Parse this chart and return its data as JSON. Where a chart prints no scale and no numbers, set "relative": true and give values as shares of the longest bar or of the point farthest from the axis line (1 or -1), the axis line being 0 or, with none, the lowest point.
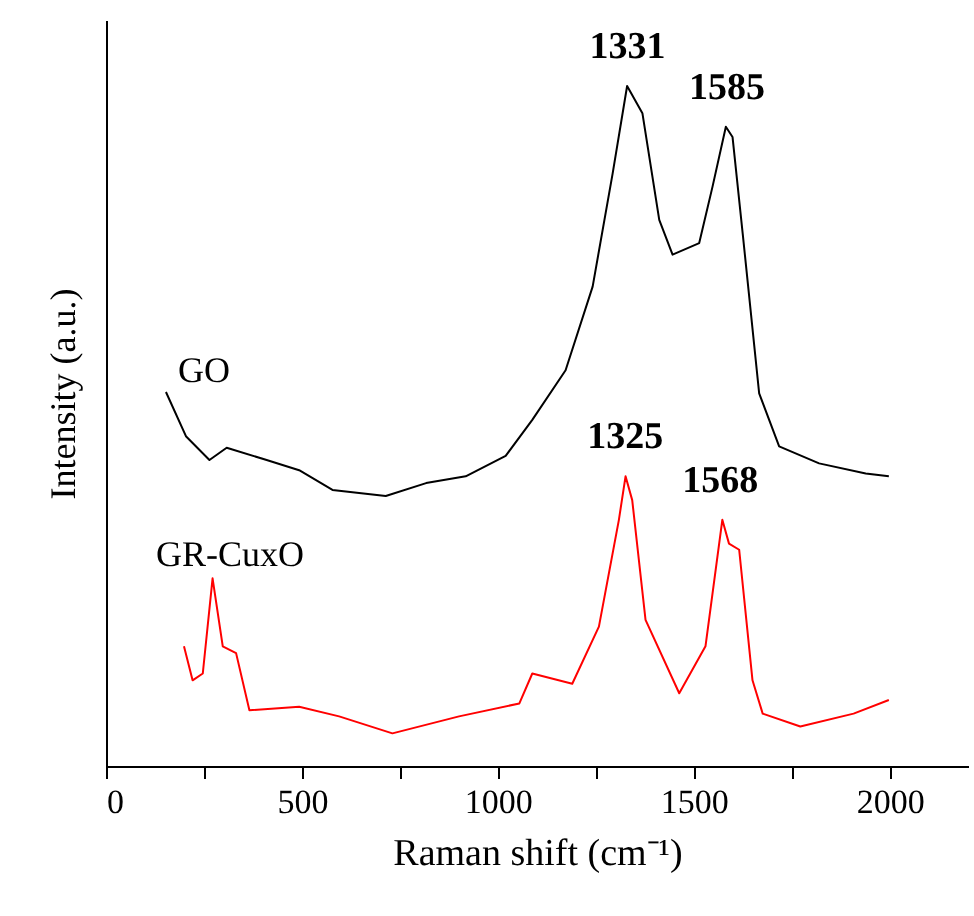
{
  "chart_data": {
    "type": "line",
    "relative": true,
    "xlabel": "Raman shift (cm⁻¹)",
    "ylabel": "Intensity (a.u.)",
    "xlim": [
      0,
      2200
    ],
    "xticks": [
      0,
      {
        "value": 250,
        "label": null
      },
      500,
      {
        "value": 750,
        "label": null
      },
      1000,
      {
        "value": 1250,
        "label": null
      },
      1500,
      {
        "value": 1750,
        "label": null
      },
      2000
    ],
    "tick_labels": "x",
    "grid": false,
    "series": [
      {
        "name": "GO",
        "color": "#000000",
        "x": [
          153,
          204,
          264,
          308,
          410,
          493,
          578,
          714,
          817,
          918,
          1020,
          1088,
          1173,
          1242,
          1293,
          1330,
          1369,
          1412,
          1446,
          1514,
          1548,
          1582,
          1599,
          1625,
          1667,
          1718,
          1820,
          1939,
          1998
        ],
        "values": [
          0.55,
          0.485,
          0.45,
          0.468,
          0.45,
          0.435,
          0.406,
          0.397,
          0.416,
          0.426,
          0.456,
          0.509,
          0.582,
          0.705,
          0.871,
          1.0,
          0.96,
          0.803,
          0.752,
          0.769,
          0.852,
          0.94,
          0.925,
          0.783,
          0.548,
          0.47,
          0.445,
          0.43,
          0.426
        ]
      },
      {
        "name": "GR-CuxO",
        "color": "#ff0000",
        "x": [
          199,
          221,
          247,
          272,
          298,
          332,
          366,
          493,
          595,
          731,
          901,
          1055,
          1088,
          1190,
          1258,
          1309,
          1326,
          1343,
          1377,
          1463,
          1530,
          1573,
          1590,
          1616,
          1650,
          1676,
          1772,
          1908,
          1998
        ],
        "values": [
          0.176,
          0.126,
          0.136,
          0.276,
          0.176,
          0.166,
          0.082,
          0.087,
          0.073,
          0.048,
          0.073,
          0.092,
          0.136,
          0.121,
          0.205,
          0.362,
          0.426,
          0.391,
          0.215,
          0.107,
          0.176,
          0.362,
          0.327,
          0.318,
          0.126,
          0.077,
          0.058,
          0.077,
          0.097
        ]
      }
    ],
    "annotations": [
      {
        "text": "1331",
        "x": 1331,
        "y": 1.0
      },
      {
        "text": "1585",
        "x": 1585,
        "y": 0.94
      },
      {
        "text": "1325",
        "x": 1325,
        "y": 0.426
      },
      {
        "text": "1568",
        "x": 1568,
        "y": 0.362
      }
    ]
  }
}
